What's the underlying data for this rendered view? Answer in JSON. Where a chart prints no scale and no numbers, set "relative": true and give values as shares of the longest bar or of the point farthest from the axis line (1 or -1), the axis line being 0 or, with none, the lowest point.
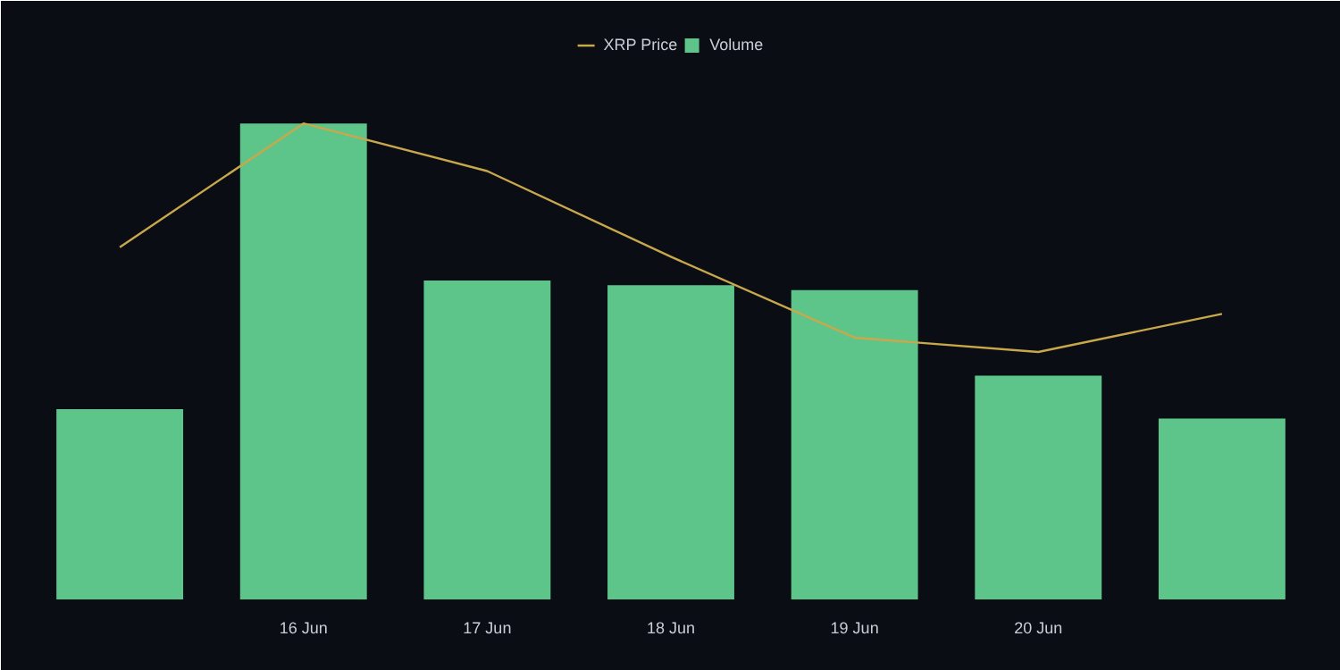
{
  "chart_data": {
    "type": "bar",
    "relative": true,
    "categories": [
      null,
      "16 Jun",
      "17 Jun",
      "18 Jun",
      "19 Jun",
      "20 Jun",
      null
    ],
    "series": [
      {
        "name": "XRP Price",
        "type": "line",
        "color": "#c9a84c",
        "values": [
          0.74,
          1.0,
          0.9,
          0.72,
          0.55,
          0.52,
          0.6
        ]
      },
      {
        "name": "Volume",
        "color": "#5dc58a",
        "values": [
          0.4,
          1.0,
          0.67,
          0.66,
          0.65,
          0.47,
          0.38
        ]
      }
    ],
    "legend": "top"
  }
}
